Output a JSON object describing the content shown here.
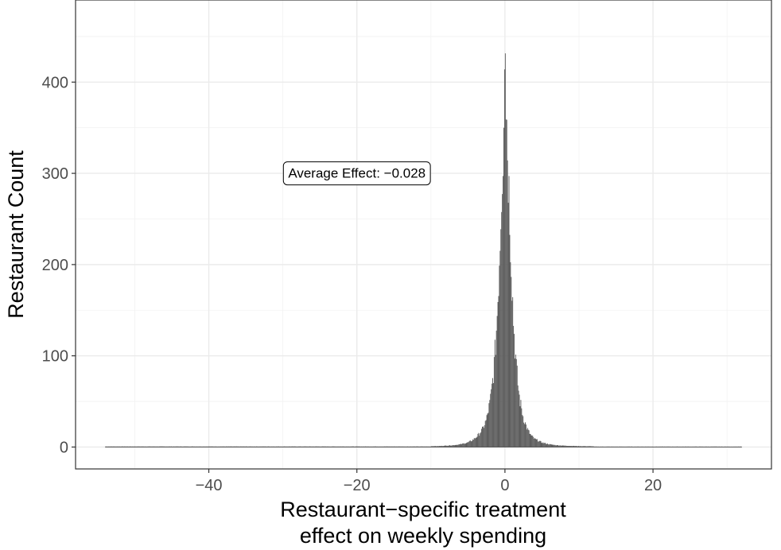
{
  "chart_data": {
    "type": "bar",
    "title": "",
    "xlabel": [
      "Restaurant−specific treatment",
      "effect on weekly spending"
    ],
    "ylabel": "Restaurant Count",
    "xlim": [
      -58,
      36
    ],
    "ylim": [
      -24,
      490
    ],
    "x_ticks": [
      -40,
      -20,
      0,
      20
    ],
    "x_tick_labels": [
      "−40",
      "−20",
      "0",
      "20"
    ],
    "y_ticks": [
      0,
      100,
      200,
      300,
      400
    ],
    "y_tick_labels": [
      "0",
      "100",
      "200",
      "300",
      "400"
    ],
    "grid": true,
    "bar_color": "#595959",
    "bin_width": 0.1,
    "support": [
      -54,
      32
    ],
    "bins": [
      {
        "x": -10,
        "y": 1
      },
      {
        "x": -9,
        "y": 1
      },
      {
        "x": -8,
        "y": 1.5
      },
      {
        "x": -7,
        "y": 2
      },
      {
        "x": -6,
        "y": 3
      },
      {
        "x": -5,
        "y": 5
      },
      {
        "x": -4.5,
        "y": 7
      },
      {
        "x": -4,
        "y": 10
      },
      {
        "x": -3.5,
        "y": 14
      },
      {
        "x": -3,
        "y": 20
      },
      {
        "x": -2.5,
        "y": 30
      },
      {
        "x": -2,
        "y": 50
      },
      {
        "x": -1.8,
        "y": 62
      },
      {
        "x": -1.5,
        "y": 85
      },
      {
        "x": -1.2,
        "y": 120
      },
      {
        "x": -1,
        "y": 155
      },
      {
        "x": -0.8,
        "y": 195
      },
      {
        "x": -0.6,
        "y": 245
      },
      {
        "x": -0.4,
        "y": 300
      },
      {
        "x": -0.2,
        "y": 340
      },
      {
        "x": -0.1,
        "y": 360
      },
      {
        "x": 0,
        "y": 468
      },
      {
        "x": 0.1,
        "y": 395
      },
      {
        "x": 0.2,
        "y": 375
      },
      {
        "x": 0.3,
        "y": 345
      },
      {
        "x": 0.4,
        "y": 315
      },
      {
        "x": 0.6,
        "y": 270
      },
      {
        "x": 0.8,
        "y": 220
      },
      {
        "x": 1,
        "y": 170
      },
      {
        "x": 1.2,
        "y": 130
      },
      {
        "x": 1.5,
        "y": 92
      },
      {
        "x": 1.8,
        "y": 65
      },
      {
        "x": 2,
        "y": 52
      },
      {
        "x": 2.5,
        "y": 32
      },
      {
        "x": 3,
        "y": 20
      },
      {
        "x": 3.5,
        "y": 13
      },
      {
        "x": 4,
        "y": 9
      },
      {
        "x": 5,
        "y": 5
      },
      {
        "x": 6,
        "y": 3
      },
      {
        "x": 7,
        "y": 2
      },
      {
        "x": 8,
        "y": 1.5
      },
      {
        "x": 10,
        "y": 1
      },
      {
        "x": 12,
        "y": 0.8
      }
    ],
    "annotation": {
      "text": "Average Effect: −0.028",
      "x": -20,
      "y": 300
    }
  }
}
